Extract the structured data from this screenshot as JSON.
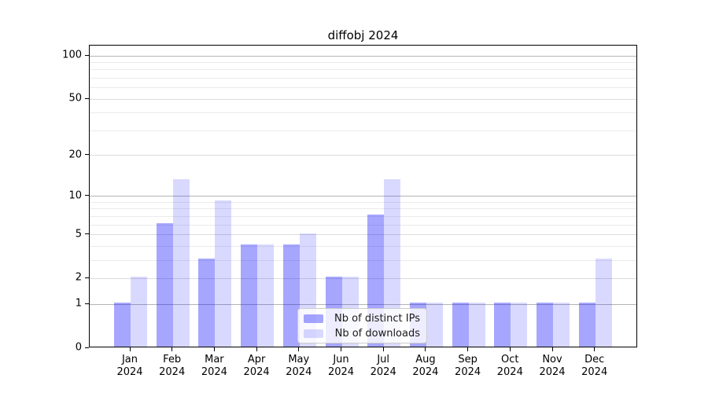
{
  "chart_data": {
    "type": "bar",
    "title": "diffobj 2024",
    "categories": [
      {
        "month": "Jan",
        "year": "2024"
      },
      {
        "month": "Feb",
        "year": "2024"
      },
      {
        "month": "Mar",
        "year": "2024"
      },
      {
        "month": "Apr",
        "year": "2024"
      },
      {
        "month": "May",
        "year": "2024"
      },
      {
        "month": "Jun",
        "year": "2024"
      },
      {
        "month": "Jul",
        "year": "2024"
      },
      {
        "month": "Aug",
        "year": "2024"
      },
      {
        "month": "Sep",
        "year": "2024"
      },
      {
        "month": "Oct",
        "year": "2024"
      },
      {
        "month": "Nov",
        "year": "2024"
      },
      {
        "month": "Dec",
        "year": "2024"
      }
    ],
    "series": [
      {
        "name": "Nb of distinct IPs",
        "values": [
          1,
          6,
          3,
          4,
          4,
          2,
          7,
          1,
          1,
          1,
          1,
          1
        ]
      },
      {
        "name": "Nb of downloads",
        "values": [
          2,
          13,
          9,
          4,
          5,
          2,
          13,
          1,
          1,
          1,
          1,
          3
        ]
      }
    ],
    "y_ticks": [
      0,
      1,
      2,
      5,
      10,
      20,
      50,
      100
    ],
    "y_scale": "log10(1+v)",
    "ylim": [
      0,
      117
    ],
    "grid": "horizontal",
    "legend_position": "bottom-center",
    "colors": {
      "bar_ips": "rgba(0,0,255,0.35)",
      "bar_downloads": "rgba(0,0,255,0.15)",
      "decade_grid": "#b4b4b4",
      "major_grid": "#dcdcdc",
      "minor_grid": "#ebebeb",
      "axis": "#000000"
    }
  }
}
